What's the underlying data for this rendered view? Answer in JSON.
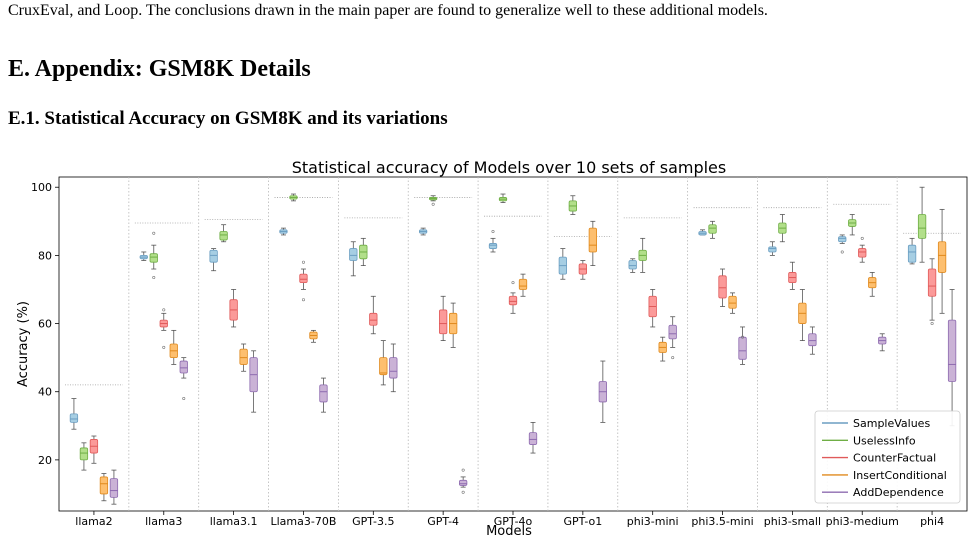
{
  "paper": {
    "intro_line": "CruxEval, and Loop. The conclusions drawn in the main paper are found to generalize well to these additional models.",
    "section_heading": "E. Appendix: GSM8K Details",
    "subsection_heading": "E.1. Statistical Accuracy on GSM8K and its variations"
  },
  "chart_data": {
    "type": "box",
    "title": "Statistical accuracy of Models over 10 sets of samples",
    "xlabel": "Models",
    "ylabel": "Accuracy (%)",
    "ylim": [
      5,
      103
    ],
    "yticks": [
      20,
      40,
      60,
      80,
      100
    ],
    "grid": "vertical dotted separators between models",
    "legend_position": "bottom-right",
    "categories": [
      "llama2",
      "llama3",
      "llama3.1",
      "Llama3-70B",
      "GPT-3.5",
      "GPT-4",
      "GPT-4o",
      "GPT-o1",
      "phi3-mini",
      "phi3.5-mini",
      "phi3-small",
      "phi3-medium",
      "phi4"
    ],
    "reference_lines": [
      42,
      89.5,
      90.5,
      97,
      91,
      97,
      91.5,
      85.5,
      91,
      94,
      94,
      95,
      86.5
    ],
    "series": [
      {
        "name": "SampleValues",
        "color": "#a6cee3",
        "stroke": "#6b9ec2",
        "boxes": [
          {
            "min": 29,
            "q1": 31,
            "med": 32,
            "q3": 33.5,
            "max": 38,
            "outliers": []
          },
          {
            "min": 78.5,
            "q1": 79,
            "med": 79.5,
            "q3": 80,
            "max": 81,
            "outliers": []
          },
          {
            "min": 75.5,
            "q1": 78,
            "med": 80,
            "q3": 81.5,
            "max": 82,
            "outliers": []
          },
          {
            "min": 86,
            "q1": 86.5,
            "med": 87,
            "q3": 87.5,
            "max": 88,
            "outliers": []
          },
          {
            "min": 74,
            "q1": 78.5,
            "med": 80,
            "q3": 82,
            "max": 84,
            "outliers": []
          },
          {
            "min": 86,
            "q1": 86.5,
            "med": 87,
            "q3": 87.5,
            "max": 88,
            "outliers": []
          },
          {
            "min": 81,
            "q1": 82,
            "med": 83,
            "q3": 83.5,
            "max": 85,
            "outliers": [
              87
            ]
          },
          {
            "min": 73,
            "q1": 74.5,
            "med": 77,
            "q3": 79.5,
            "max": 82,
            "outliers": []
          },
          {
            "min": 75,
            "q1": 76,
            "med": 77,
            "q3": 78.5,
            "max": 79,
            "outliers": []
          },
          {
            "min": 86,
            "q1": 86,
            "med": 86.5,
            "q3": 87,
            "max": 87.5,
            "outliers": []
          },
          {
            "min": 80,
            "q1": 81,
            "med": 82,
            "q3": 82.5,
            "max": 84,
            "outliers": []
          },
          {
            "min": 83.5,
            "q1": 84,
            "med": 85,
            "q3": 85.5,
            "max": 86,
            "outliers": [
              81
            ]
          },
          {
            "min": 77.5,
            "q1": 78,
            "med": 81,
            "q3": 83,
            "max": 85,
            "outliers": []
          }
        ]
      },
      {
        "name": "UselessInfo",
        "color": "#b2df8a",
        "stroke": "#6fae45",
        "boxes": [
          {
            "min": 17,
            "q1": 20,
            "med": 22,
            "q3": 23.5,
            "max": 25,
            "outliers": []
          },
          {
            "min": 76,
            "q1": 78,
            "med": 79.5,
            "q3": 80.5,
            "max": 83,
            "outliers": [
              86.5,
              73.5
            ]
          },
          {
            "min": 84,
            "q1": 84.5,
            "med": 86,
            "q3": 87,
            "max": 89,
            "outliers": []
          },
          {
            "min": 96,
            "q1": 96.5,
            "med": 97,
            "q3": 97.5,
            "max": 98,
            "outliers": []
          },
          {
            "min": 77,
            "q1": 79,
            "med": 81,
            "q3": 83,
            "max": 85,
            "outliers": []
          },
          {
            "min": 96,
            "q1": 96.3,
            "med": 96.7,
            "q3": 97,
            "max": 97.5,
            "outliers": [
              95
            ]
          },
          {
            "min": 95.5,
            "q1": 96,
            "med": 96.5,
            "q3": 97,
            "max": 98,
            "outliers": []
          },
          {
            "min": 92,
            "q1": 93,
            "med": 94.5,
            "q3": 96,
            "max": 97.5,
            "outliers": []
          },
          {
            "min": 75,
            "q1": 78.5,
            "med": 80,
            "q3": 81.5,
            "max": 85,
            "outliers": []
          },
          {
            "min": 85,
            "q1": 86.5,
            "med": 88,
            "q3": 89,
            "max": 90,
            "outliers": []
          },
          {
            "min": 84,
            "q1": 86.5,
            "med": 88,
            "q3": 89.5,
            "max": 92,
            "outliers": []
          },
          {
            "min": 86,
            "q1": 88.5,
            "med": 89.5,
            "q3": 90.5,
            "max": 92,
            "outliers": []
          },
          {
            "min": 78,
            "q1": 85,
            "med": 88,
            "q3": 92,
            "max": 100,
            "outliers": []
          }
        ]
      },
      {
        "name": "CounterFactual",
        "color": "#fb9a99",
        "stroke": "#e05a5a",
        "boxes": [
          {
            "min": 19,
            "q1": 22,
            "med": 24,
            "q3": 26,
            "max": 27,
            "outliers": []
          },
          {
            "min": 58,
            "q1": 59,
            "med": 60,
            "q3": 61,
            "max": 63,
            "outliers": [
              64,
              53
            ]
          },
          {
            "min": 59,
            "q1": 61,
            "med": 64,
            "q3": 67,
            "max": 70,
            "outliers": []
          },
          {
            "min": 70,
            "q1": 72,
            "med": 73,
            "q3": 74.5,
            "max": 76,
            "outliers": [
              78,
              67
            ]
          },
          {
            "min": 57,
            "q1": 59.5,
            "med": 61,
            "q3": 63,
            "max": 68,
            "outliers": []
          },
          {
            "min": 55,
            "q1": 57,
            "med": 60,
            "q3": 64,
            "max": 68,
            "outliers": []
          },
          {
            "min": 63,
            "q1": 65.5,
            "med": 66.5,
            "q3": 68,
            "max": 69,
            "outliers": [
              72
            ]
          },
          {
            "min": 73,
            "q1": 74.5,
            "med": 76,
            "q3": 77.5,
            "max": 78.5,
            "outliers": []
          },
          {
            "min": 59,
            "q1": 62,
            "med": 65,
            "q3": 68,
            "max": 70,
            "outliers": []
          },
          {
            "min": 65,
            "q1": 67.5,
            "med": 70.5,
            "q3": 74,
            "max": 76,
            "outliers": []
          },
          {
            "min": 70,
            "q1": 72,
            "med": 73.5,
            "q3": 75,
            "max": 78,
            "outliers": []
          },
          {
            "min": 78,
            "q1": 79.5,
            "med": 81,
            "q3": 82,
            "max": 83,
            "outliers": [
              85
            ]
          },
          {
            "min": 61,
            "q1": 68,
            "med": 71,
            "q3": 76,
            "max": 79,
            "outliers": [
              60
            ]
          }
        ]
      },
      {
        "name": "InsertConditional",
        "color": "#fdbf6f",
        "stroke": "#e08a1e",
        "boxes": [
          {
            "min": 8,
            "q1": 10,
            "med": 13,
            "q3": 15,
            "max": 16,
            "outliers": []
          },
          {
            "min": 48,
            "q1": 50,
            "med": 52,
            "q3": 54,
            "max": 58,
            "outliers": []
          },
          {
            "min": 46,
            "q1": 48,
            "med": 50,
            "q3": 52.5,
            "max": 54,
            "outliers": []
          },
          {
            "min": 54.5,
            "q1": 55.5,
            "med": 56.5,
            "q3": 57.5,
            "max": 58,
            "outliers": []
          },
          {
            "min": 42,
            "q1": 45,
            "med": 45.5,
            "q3": 50,
            "max": 55,
            "outliers": []
          },
          {
            "min": 53,
            "q1": 57,
            "med": 60,
            "q3": 63,
            "max": 66,
            "outliers": []
          },
          {
            "min": 68,
            "q1": 70,
            "med": 71,
            "q3": 73,
            "max": 74.5,
            "outliers": []
          },
          {
            "min": 77,
            "q1": 81,
            "med": 83,
            "q3": 88,
            "max": 90,
            "outliers": []
          },
          {
            "min": 49,
            "q1": 51.5,
            "med": 53,
            "q3": 54.5,
            "max": 56,
            "outliers": []
          },
          {
            "min": 63,
            "q1": 64.5,
            "med": 66,
            "q3": 68,
            "max": 69,
            "outliers": []
          },
          {
            "min": 55,
            "q1": 60,
            "med": 63,
            "q3": 66,
            "max": 70,
            "outliers": []
          },
          {
            "min": 68,
            "q1": 70.5,
            "med": 72,
            "q3": 73.5,
            "max": 75,
            "outliers": []
          },
          {
            "min": 63,
            "q1": 75,
            "med": 80,
            "q3": 84,
            "max": 93.5,
            "outliers": []
          }
        ]
      },
      {
        "name": "AddDependence",
        "color": "#cab2d6",
        "stroke": "#8e6bb0",
        "boxes": [
          {
            "min": 7,
            "q1": 9,
            "med": 11,
            "q3": 14.5,
            "max": 17,
            "outliers": []
          },
          {
            "min": 44,
            "q1": 45.5,
            "med": 47,
            "q3": 49,
            "max": 50,
            "outliers": [
              38
            ]
          },
          {
            "min": 34,
            "q1": 40,
            "med": 45,
            "q3": 50,
            "max": 52,
            "outliers": []
          },
          {
            "min": 34,
            "q1": 37,
            "med": 40,
            "q3": 42,
            "max": 44,
            "outliers": []
          },
          {
            "min": 40,
            "q1": 44,
            "med": 46,
            "q3": 50,
            "max": 54,
            "outliers": []
          },
          {
            "min": 12,
            "q1": 12.5,
            "med": 13,
            "q3": 14,
            "max": 15,
            "outliers": [
              17,
              10.5
            ]
          },
          {
            "min": 22,
            "q1": 24.5,
            "med": 26,
            "q3": 28,
            "max": 31,
            "outliers": []
          },
          {
            "min": 31,
            "q1": 37,
            "med": 40,
            "q3": 43,
            "max": 49,
            "outliers": []
          },
          {
            "min": 53,
            "q1": 55.5,
            "med": 57,
            "q3": 59.5,
            "max": 62,
            "outliers": [
              50
            ]
          },
          {
            "min": 48,
            "q1": 49.5,
            "med": 52,
            "q3": 56,
            "max": 59,
            "outliers": [
              56
            ]
          },
          {
            "min": 51,
            "q1": 53.5,
            "med": 55,
            "q3": 57,
            "max": 59,
            "outliers": []
          },
          {
            "min": 52,
            "q1": 54,
            "med": 55,
            "q3": 56,
            "max": 57,
            "outliers": []
          },
          {
            "min": 30,
            "q1": 43,
            "med": 48,
            "q3": 61,
            "max": 70,
            "outliers": []
          }
        ]
      }
    ]
  }
}
